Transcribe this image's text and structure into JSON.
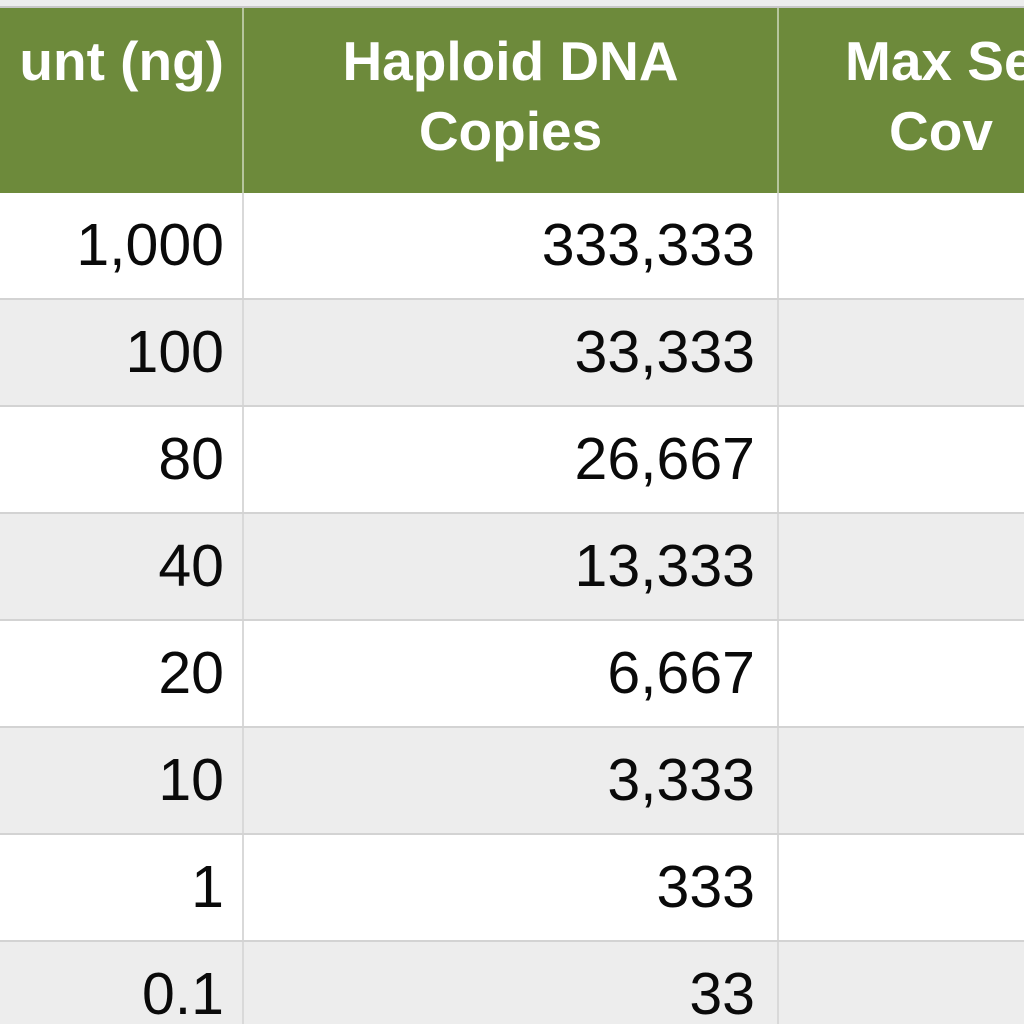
{
  "table": {
    "header": {
      "col_amount_lines": [
        "unt (ng)"
      ],
      "col_copies_lines": [
        "Haploid DNA",
        "Copies"
      ],
      "col_coverage_lines": [
        "Max Se",
        "Cov"
      ]
    },
    "rows": [
      {
        "amount": "1,000",
        "copies": "333,333",
        "coverage": ""
      },
      {
        "amount": "100",
        "copies": "33,333",
        "coverage": ""
      },
      {
        "amount": "80",
        "copies": "26,667",
        "coverage": ""
      },
      {
        "amount": "40",
        "copies": "13,333",
        "coverage": ""
      },
      {
        "amount": "20",
        "copies": "6,667",
        "coverage": ""
      },
      {
        "amount": "10",
        "copies": "3,333",
        "coverage": ""
      },
      {
        "amount": "1",
        "copies": "333",
        "coverage": ""
      },
      {
        "amount": "0.1",
        "copies": "33",
        "coverage": ""
      }
    ],
    "colors": {
      "header_bg": "#6d8a3b",
      "header_text": "#ffffff",
      "row_bg": "#ffffff",
      "row_alt_bg": "#ededed",
      "border": "#d3d3d3",
      "body_text": "#0a0a0a"
    }
  },
  "chart_data": {
    "type": "table",
    "title": "",
    "columns": [
      "unt (ng)",
      "Haploid DNA Copies",
      "Max Se Cov"
    ],
    "rows": [
      [
        "1,000",
        "333,333",
        ""
      ],
      [
        "100",
        "33,333",
        ""
      ],
      [
        "80",
        "26,667",
        ""
      ],
      [
        "40",
        "13,333",
        ""
      ],
      [
        "20",
        "6,667",
        ""
      ],
      [
        "10",
        "3,333",
        ""
      ],
      [
        "1",
        "333",
        ""
      ],
      [
        "0.1",
        "33",
        ""
      ]
    ],
    "layout_hints": {
      "header_fill": "#6d8a3b",
      "alternating_rows": true,
      "numbers_right_aligned": true,
      "cropped_left_and_right": true
    }
  }
}
